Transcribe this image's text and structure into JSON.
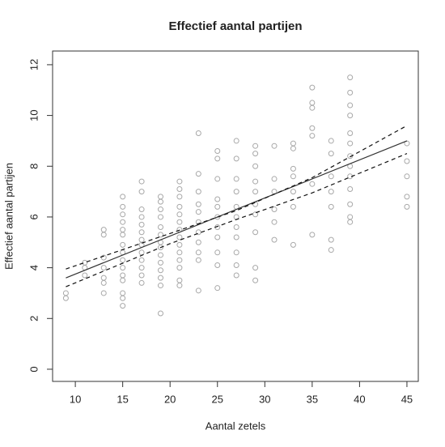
{
  "chart_data": {
    "type": "scatter",
    "title": "Effectief aantal partijen",
    "x_label": "Aantal zetels",
    "y_label": "Effectief aantal partijen",
    "xlim": [
      7.6,
      46.2
    ],
    "ylim": [
      -0.48,
      12.54
    ],
    "xticks": [
      10,
      15,
      20,
      25,
      30,
      35,
      40,
      45
    ],
    "yticks": [
      0,
      2,
      4,
      6,
      8,
      10,
      12
    ],
    "color": "#a8a8a8",
    "x": [
      9,
      9,
      11,
      11,
      11,
      13,
      13,
      13,
      13,
      13,
      13,
      13,
      15,
      15,
      15,
      15,
      15,
      15,
      15,
      15,
      15,
      15,
      15,
      15,
      15,
      15,
      15,
      17,
      17,
      17,
      17,
      17,
      17,
      17,
      17,
      17,
      17,
      17,
      17,
      17,
      19,
      19,
      19,
      19,
      19,
      19,
      19,
      19,
      19,
      19,
      19,
      19,
      19,
      19,
      21,
      21,
      21,
      21,
      21,
      21,
      21,
      21,
      21,
      21,
      21,
      21,
      21,
      21,
      23,
      23,
      23,
      23,
      23,
      23,
      23,
      23,
      23,
      23,
      23,
      25,
      25,
      25,
      25,
      25,
      25,
      25,
      25,
      25,
      25,
      25,
      27,
      27,
      27,
      27,
      27,
      27,
      27,
      27,
      27,
      27,
      27,
      29,
      29,
      29,
      29,
      29,
      29,
      29,
      29,
      29,
      29,
      31,
      31,
      31,
      31,
      31,
      31,
      33,
      33,
      33,
      33,
      33,
      33,
      33,
      35,
      35,
      35,
      35,
      35,
      35,
      35,
      37,
      37,
      37,
      37,
      37,
      37,
      37,
      39,
      39,
      39,
      39,
      39,
      39,
      39,
      39,
      39,
      39,
      39,
      39,
      39,
      45,
      45,
      45,
      45,
      45
    ],
    "values": [
      2.8,
      3.0,
      3.7,
      4.0,
      4.2,
      3.0,
      3.4,
      3.6,
      4.0,
      4.4,
      5.3,
      5.5,
      2.5,
      2.8,
      3.0,
      3.5,
      3.7,
      4.0,
      4.3,
      4.6,
      4.9,
      5.3,
      5.5,
      5.8,
      6.1,
      6.4,
      6.8,
      3.4,
      3.7,
      4.0,
      4.3,
      4.6,
      4.9,
      5.1,
      5.4,
      5.7,
      6.0,
      6.3,
      7.0,
      7.4,
      2.2,
      3.3,
      3.6,
      3.9,
      4.2,
      4.5,
      4.8,
      5.0,
      5.3,
      5.6,
      6.0,
      6.3,
      6.6,
      6.8,
      3.3,
      3.5,
      4.0,
      4.3,
      4.6,
      4.9,
      5.2,
      5.5,
      5.8,
      6.1,
      6.4,
      6.8,
      7.1,
      7.4,
      3.1,
      4.3,
      4.6,
      5.0,
      5.4,
      5.8,
      6.2,
      6.5,
      7.0,
      7.7,
      9.3,
      3.2,
      4.1,
      4.6,
      5.2,
      5.6,
      6.0,
      6.4,
      6.7,
      7.5,
      8.3,
      8.6,
      3.7,
      4.1,
      4.6,
      5.2,
      5.6,
      6.0,
      6.4,
      7.0,
      7.5,
      8.3,
      9.0,
      3.5,
      4.0,
      5.4,
      6.1,
      6.5,
      7.0,
      7.4,
      8.0,
      8.5,
      8.8,
      5.1,
      5.8,
      6.3,
      7.0,
      7.5,
      8.8,
      4.9,
      6.4,
      7.0,
      7.6,
      7.9,
      8.7,
      8.9,
      5.3,
      7.3,
      9.2,
      9.5,
      10.3,
      10.5,
      11.1,
      4.7,
      5.1,
      6.4,
      7.0,
      7.6,
      8.5,
      9.0,
      5.8,
      6.0,
      6.5,
      7.1,
      7.6,
      8.0,
      8.4,
      8.9,
      9.3,
      10.0,
      10.4,
      10.9,
      11.5,
      6.4,
      6.8,
      7.6,
      8.2,
      8.9
    ],
    "lines": [
      {
        "x": [
          9,
          45
        ],
        "values": [
          3.6,
          9.0
        ],
        "color": "#333333",
        "dash": false
      },
      {
        "x": [
          9,
          20,
          27,
          35,
          45
        ],
        "values": [
          3.95,
          5.35,
          6.25,
          7.55,
          9.6
        ],
        "color": "#111111",
        "dash": true
      },
      {
        "x": [
          9,
          20,
          27,
          35,
          45
        ],
        "values": [
          3.25,
          4.95,
          5.9,
          6.95,
          8.5
        ],
        "color": "#111111",
        "dash": true
      }
    ]
  }
}
